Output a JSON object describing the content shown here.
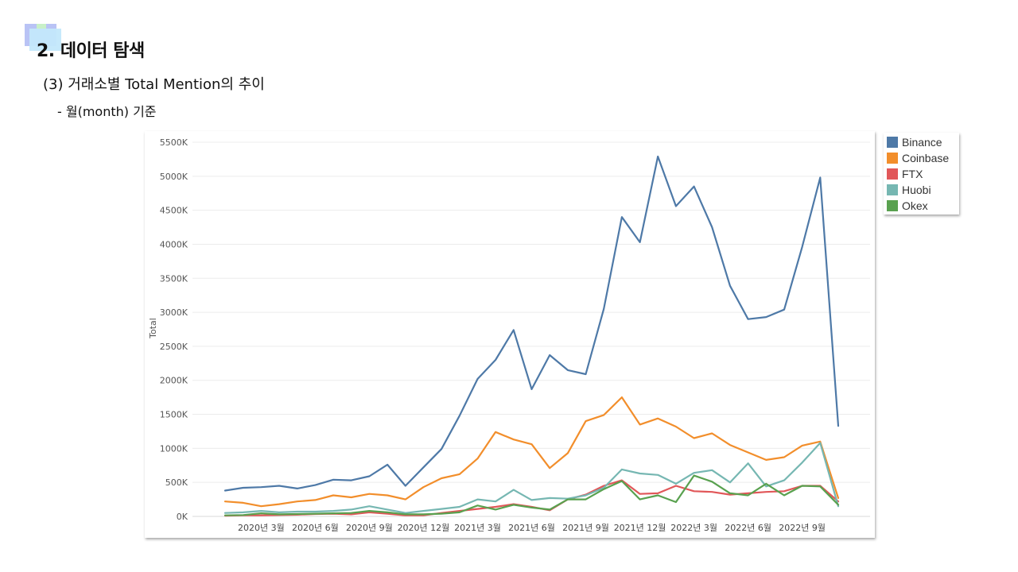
{
  "header": {
    "title": "2. 데이터 탐색",
    "subtitle": "(3) 거래소별 Total Mention의 추이",
    "note": "- 월(month) 기준"
  },
  "chart_data": {
    "type": "line",
    "ylabel": "Total",
    "xlabel": "",
    "ylim": [
      0,
      5500000
    ],
    "yticks": [
      0,
      500000,
      1000000,
      1500000,
      2000000,
      2500000,
      3000000,
      3500000,
      4000000,
      4500000,
      5000000,
      5500000
    ],
    "ytick_labels": [
      "0K",
      "500K",
      "1000K",
      "1500K",
      "2000K",
      "2500K",
      "3000K",
      "3500K",
      "4000K",
      "4500K",
      "5000K",
      "5500K"
    ],
    "x": [
      "2020-01",
      "2020-02",
      "2020-03",
      "2020-04",
      "2020-05",
      "2020-06",
      "2020-07",
      "2020-08",
      "2020-09",
      "2020-10",
      "2020-11",
      "2020-12",
      "2021-01",
      "2021-02",
      "2021-03",
      "2021-04",
      "2021-05",
      "2021-06",
      "2021-07",
      "2021-08",
      "2021-09",
      "2021-10",
      "2021-11",
      "2021-12",
      "2022-01",
      "2022-02",
      "2022-03",
      "2022-04",
      "2022-05",
      "2022-06",
      "2022-07",
      "2022-08",
      "2022-09",
      "2022-10",
      "2022-11"
    ],
    "xtick_labels": [
      {
        "index": 2,
        "label": "2020년 3월"
      },
      {
        "index": 5,
        "label": "2020년 6월"
      },
      {
        "index": 8,
        "label": "2020년 9월"
      },
      {
        "index": 11,
        "label": "2020년 12월"
      },
      {
        "index": 14,
        "label": "2021년 3월"
      },
      {
        "index": 17,
        "label": "2021년 6월"
      },
      {
        "index": 20,
        "label": "2021년 9월"
      },
      {
        "index": 23,
        "label": "2021년 12월"
      },
      {
        "index": 26,
        "label": "2022년 3월"
      },
      {
        "index": 29,
        "label": "2022년 6월"
      },
      {
        "index": 32,
        "label": "2022년 9월"
      }
    ],
    "grid": true,
    "legend_position": "top-right",
    "series": [
      {
        "name": "Binance",
        "color": "#4e79a7",
        "values": [
          380000,
          420000,
          430000,
          450000,
          410000,
          460000,
          540000,
          530000,
          590000,
          760000,
          450000,
          720000,
          990000,
          1480000,
          2020000,
          2300000,
          2740000,
          1870000,
          2370000,
          2150000,
          2090000,
          3050000,
          4400000,
          4030000,
          5290000,
          4560000,
          4850000,
          4250000,
          3390000,
          2900000,
          2930000,
          3040000,
          3960000,
          4980000,
          1330000
        ]
      },
      {
        "name": "Coinbase",
        "color": "#f28e2b",
        "values": [
          220000,
          200000,
          150000,
          180000,
          220000,
          240000,
          310000,
          280000,
          330000,
          310000,
          250000,
          430000,
          560000,
          620000,
          850000,
          1240000,
          1130000,
          1060000,
          710000,
          930000,
          1400000,
          1490000,
          1750000,
          1350000,
          1440000,
          1320000,
          1150000,
          1220000,
          1050000,
          940000,
          830000,
          870000,
          1040000,
          1100000,
          270000
        ]
      },
      {
        "name": "FTX",
        "color": "#e15759",
        "values": [
          10000,
          15000,
          15000,
          20000,
          25000,
          35000,
          40000,
          30000,
          60000,
          40000,
          15000,
          15000,
          50000,
          80000,
          110000,
          140000,
          180000,
          140000,
          90000,
          250000,
          320000,
          450000,
          530000,
          330000,
          340000,
          450000,
          370000,
          360000,
          320000,
          340000,
          360000,
          370000,
          450000,
          450000,
          220000
        ]
      },
      {
        "name": "Huobi",
        "color": "#76b7b2",
        "values": [
          50000,
          60000,
          80000,
          60000,
          70000,
          70000,
          80000,
          100000,
          150000,
          100000,
          50000,
          80000,
          110000,
          140000,
          250000,
          220000,
          390000,
          240000,
          270000,
          260000,
          310000,
          420000,
          690000,
          630000,
          610000,
          480000,
          640000,
          680000,
          500000,
          780000,
          440000,
          530000,
          790000,
          1080000,
          150000
        ]
      },
      {
        "name": "Okex",
        "color": "#59a14f",
        "values": [
          15000,
          20000,
          45000,
          30000,
          35000,
          40000,
          45000,
          50000,
          80000,
          60000,
          30000,
          30000,
          40000,
          60000,
          160000,
          100000,
          170000,
          130000,
          100000,
          250000,
          250000,
          400000,
          520000,
          250000,
          310000,
          210000,
          600000,
          510000,
          340000,
          310000,
          480000,
          310000,
          450000,
          440000,
          170000
        ]
      }
    ]
  }
}
